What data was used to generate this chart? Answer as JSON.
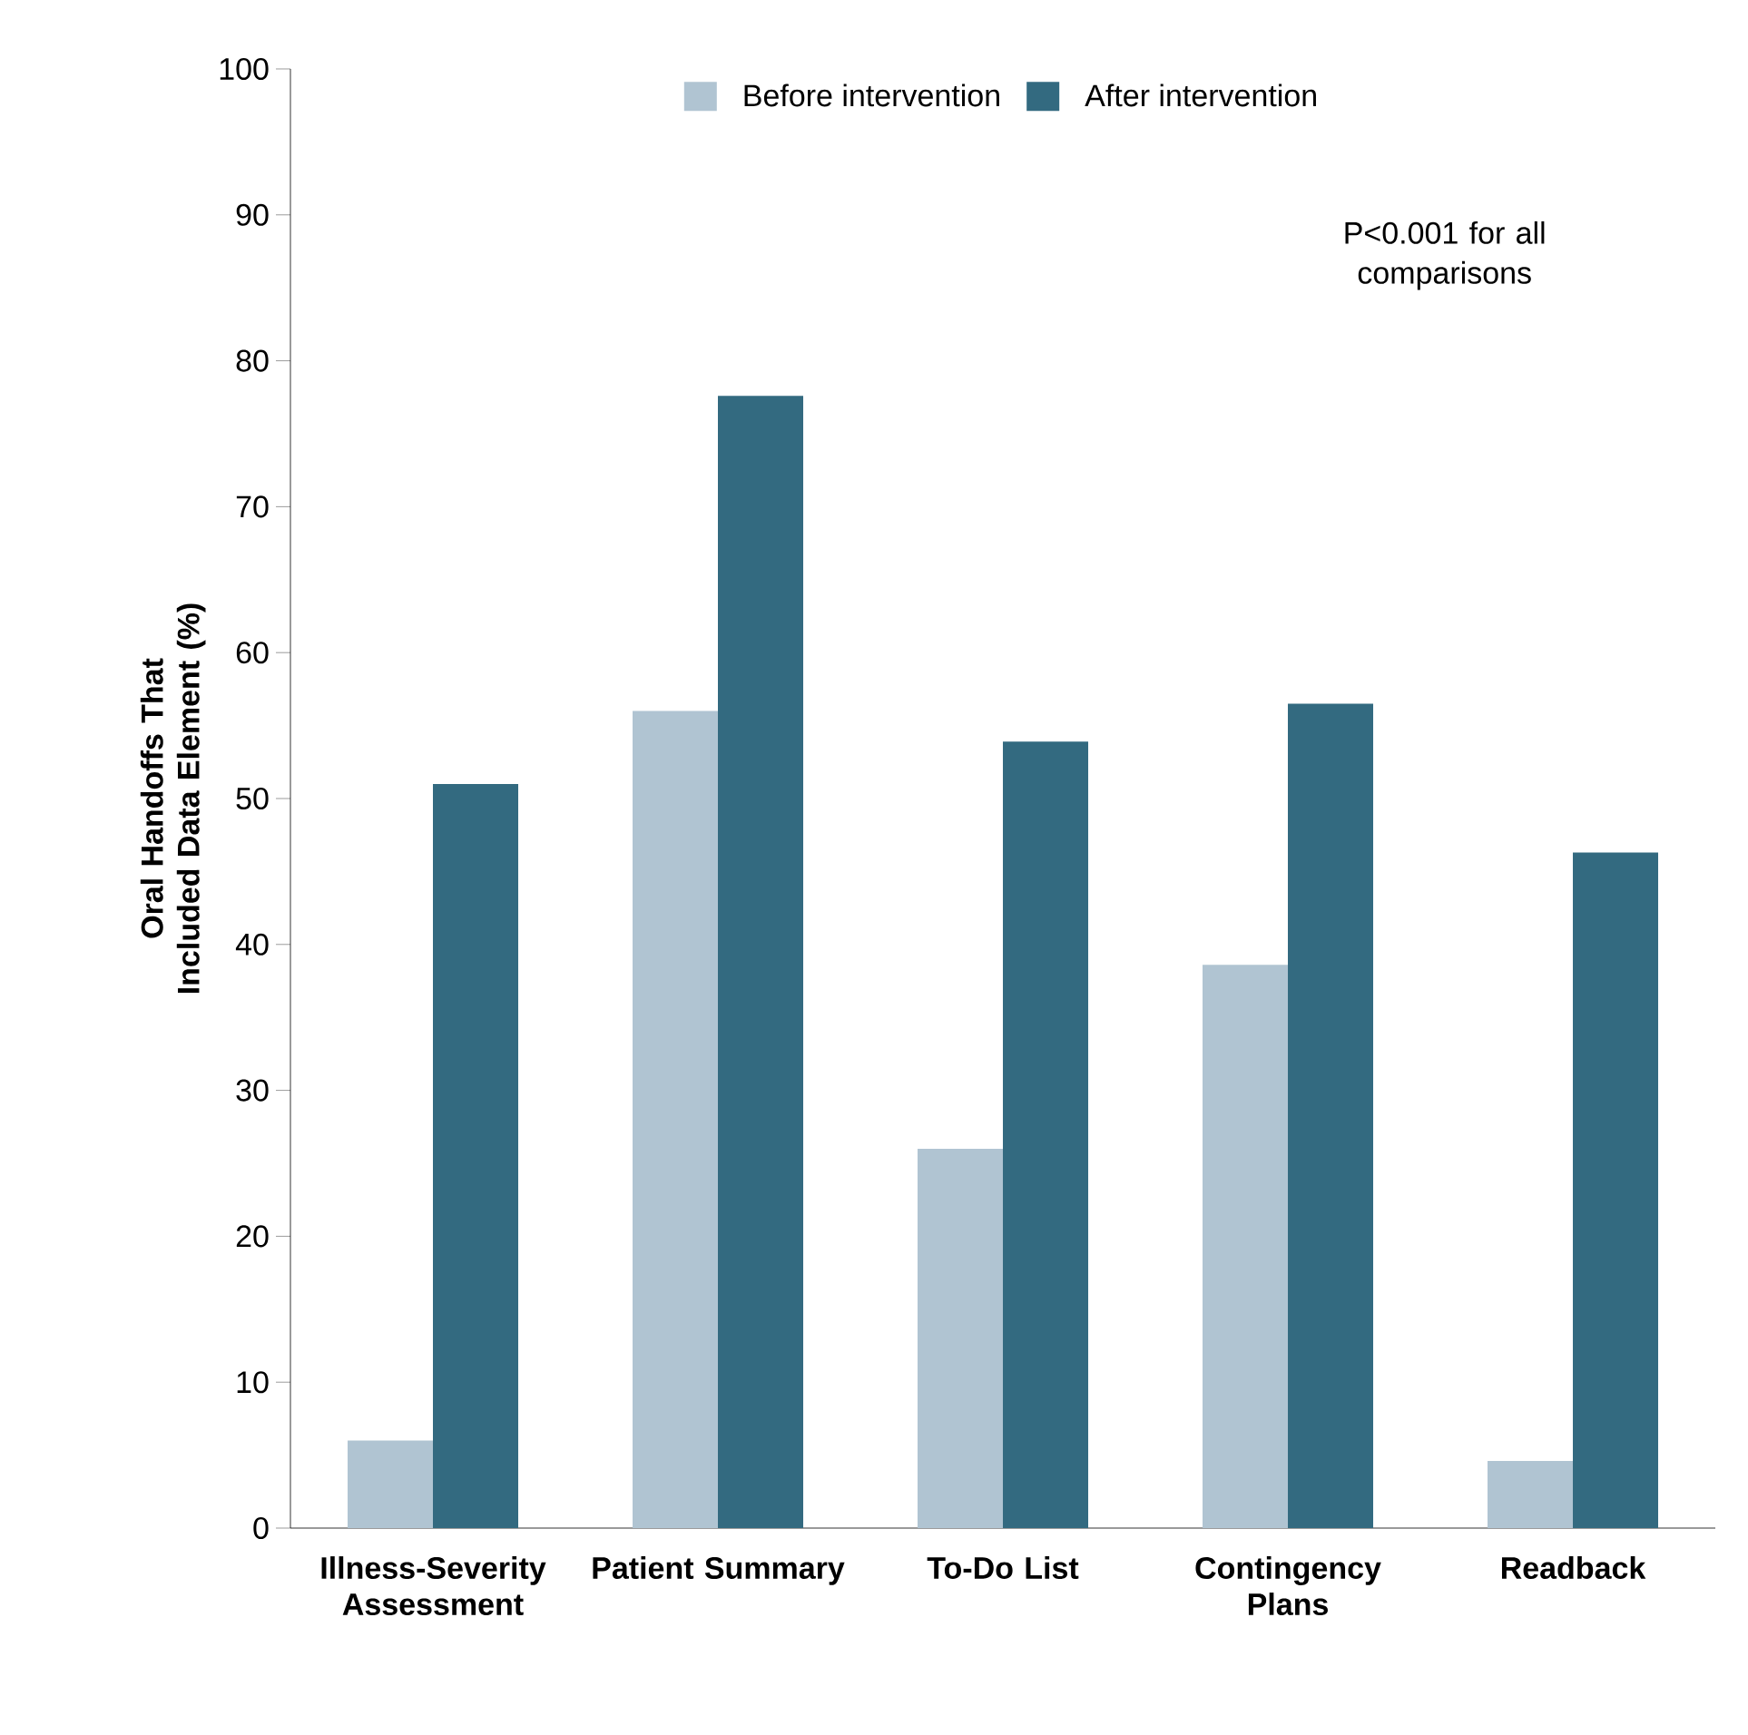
{
  "chart_data": {
    "type": "bar",
    "ylabel": "Oral Handoffs That Included Data Element (%)",
    "categories": [
      "Illness-Severity Assessment",
      "Patient Summary",
      "To-Do List",
      "Contingency Plans",
      "Readback"
    ],
    "series": [
      {
        "name": "Before intervention",
        "color": "#b0c4d2",
        "values": [
          6,
          56,
          26,
          38.6,
          4.6
        ]
      },
      {
        "name": "After intervention",
        "color": "#336a80",
        "values": [
          51,
          77.6,
          53.9,
          56.5,
          46.3
        ]
      }
    ],
    "ylim": [
      0,
      100
    ],
    "yticks": [
      0,
      10,
      20,
      30,
      40,
      50,
      60,
      70,
      80,
      90,
      100
    ],
    "legend": "top",
    "grid": false,
    "annotations": [
      "P<0.001 for all comparisons"
    ]
  }
}
